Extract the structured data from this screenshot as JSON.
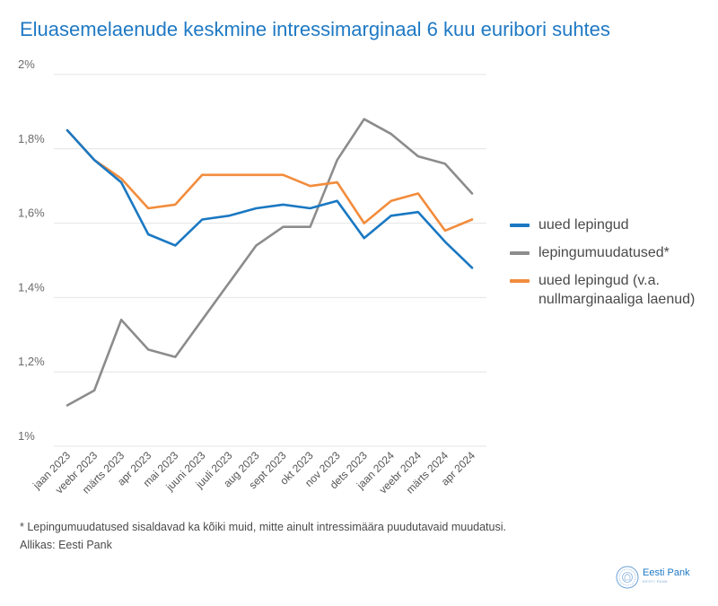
{
  "title": "Eluasemelaenude keskmine intressimarginaal 6 kuu euribori suhtes",
  "chart_data": {
    "type": "line",
    "categories": [
      "jaan 2023",
      "veebr 2023",
      "märts 2023",
      "apr 2023",
      "mai 2023",
      "juuni 2023",
      "juuli 2023",
      "aug 2023",
      "sept 2023",
      "okt 2023",
      "nov 2023",
      "dets 2023",
      "jaan 2024",
      "veebr 2024",
      "märts 2024",
      "apr 2024"
    ],
    "ylim": [
      1.0,
      2.0
    ],
    "yticks": [
      1.0,
      1.2,
      1.4,
      1.6,
      1.8,
      2.0
    ],
    "ytick_labels": [
      "1%",
      "1,2%",
      "1,4%",
      "1,6%",
      "1,8%",
      "2%"
    ],
    "grid": true,
    "legend_position": "right",
    "series": [
      {
        "name": "uued lepingud",
        "color": "#1a78c2",
        "values": [
          1.85,
          1.77,
          1.71,
          1.57,
          1.54,
          1.61,
          1.62,
          1.64,
          1.65,
          1.64,
          1.66,
          1.56,
          1.62,
          1.63,
          1.55,
          1.48
        ]
      },
      {
        "name": "lepingumuudatused*",
        "color": "#8c8c8c",
        "values": [
          1.11,
          1.15,
          1.34,
          1.26,
          1.24,
          1.34,
          1.44,
          1.54,
          1.59,
          1.59,
          1.77,
          1.88,
          1.84,
          1.78,
          1.76,
          1.68
        ]
      },
      {
        "name": "uued lepingud (v.a. nullmarginaaliga laenud)",
        "color": "#f28c3c",
        "values": [
          1.85,
          1.77,
          1.72,
          1.64,
          1.65,
          1.73,
          1.73,
          1.73,
          1.73,
          1.7,
          1.71,
          1.6,
          1.66,
          1.68,
          1.58,
          1.61
        ]
      }
    ]
  },
  "footnote": "* Lepingumuudatused sisaldavad ka kõiki muid, mitte ainult intressimäära puudutavaid muudatusi.",
  "source": "Allikas: Eesti Pank",
  "logo": {
    "name": "Eesti Pank",
    "sub": "EESTI PANK"
  }
}
